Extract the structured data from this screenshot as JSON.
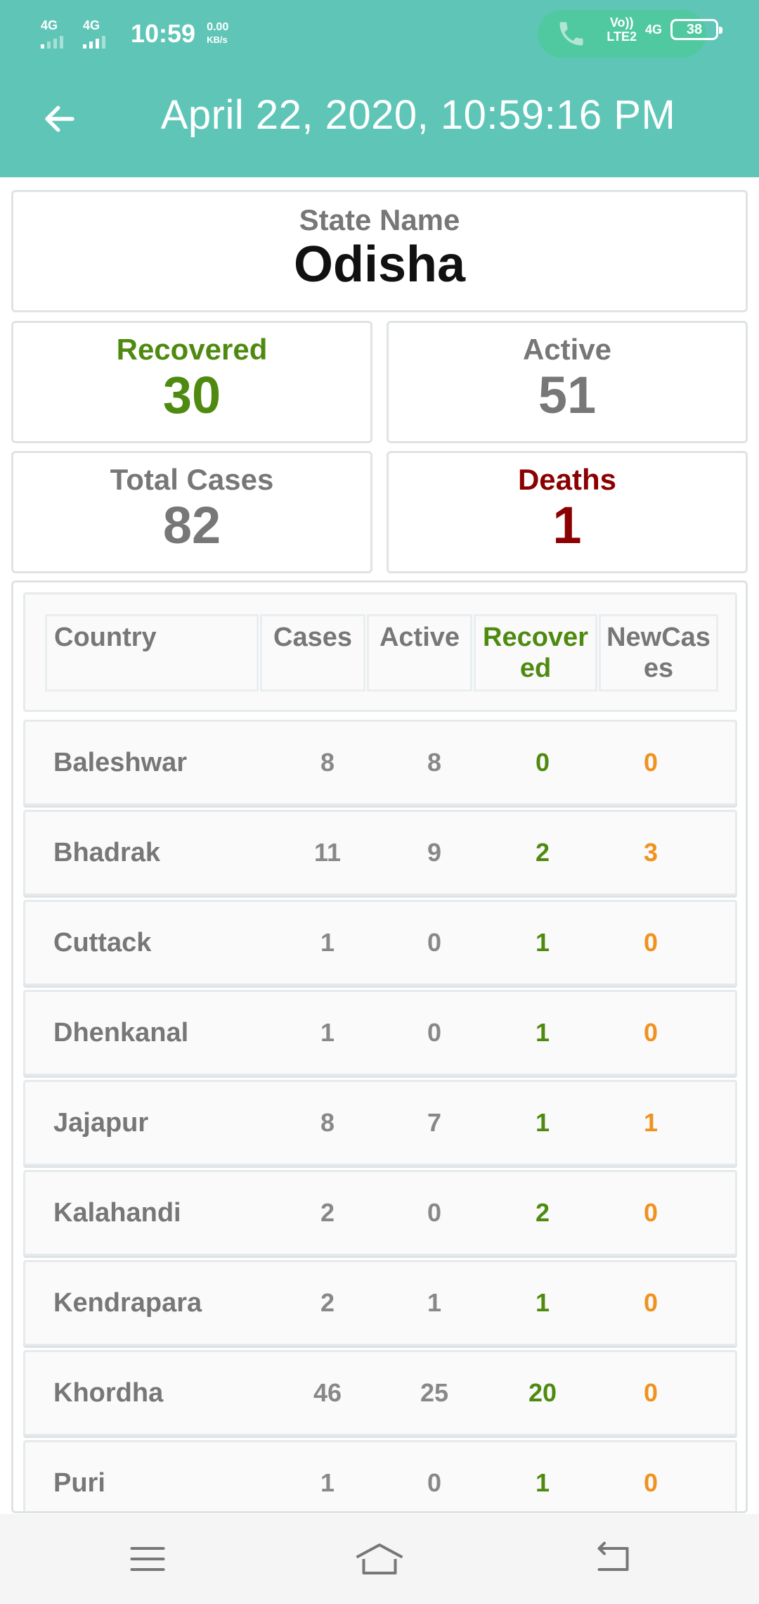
{
  "status_bar": {
    "sim1": "4G",
    "sim2": "4G",
    "time": "10:59",
    "speed_value": "0.00",
    "speed_unit": "KB/s",
    "volte_top": "Vo))",
    "volte_bottom": "LTE2",
    "network": "4G",
    "battery": "38"
  },
  "header": {
    "title": "April 22, 2020, 10:59:16 PM"
  },
  "state": {
    "label": "State Name",
    "value": "Odisha"
  },
  "stats": {
    "recovered": {
      "label": "Recovered",
      "value": "30"
    },
    "active": {
      "label": "Active",
      "value": "51"
    },
    "total": {
      "label": "Total Cases",
      "value": "82"
    },
    "deaths": {
      "label": "Deaths",
      "value": "1"
    }
  },
  "colors": {
    "teal": "#5fc6b7",
    "green": "#4f8a10",
    "red": "#8b0000",
    "orange": "#f0921e",
    "gray": "#777777"
  },
  "table": {
    "headers": {
      "country": "Country",
      "cases": "Cases",
      "active": "Active",
      "recovered": "Recovered",
      "new_cases": "NewCases"
    },
    "rows": [
      {
        "name": "Baleshwar",
        "cases": "8",
        "active": "8",
        "recovered": "0",
        "new_cases": "0"
      },
      {
        "name": "Bhadrak",
        "cases": "11",
        "active": "9",
        "recovered": "2",
        "new_cases": "3"
      },
      {
        "name": "Cuttack",
        "cases": "1",
        "active": "0",
        "recovered": "1",
        "new_cases": "0"
      },
      {
        "name": "Dhenkanal",
        "cases": "1",
        "active": "0",
        "recovered": "1",
        "new_cases": "0"
      },
      {
        "name": "Jajapur",
        "cases": "8",
        "active": "7",
        "recovered": "1",
        "new_cases": "1"
      },
      {
        "name": "Kalahandi",
        "cases": "2",
        "active": "0",
        "recovered": "2",
        "new_cases": "0"
      },
      {
        "name": "Kendrapara",
        "cases": "2",
        "active": "1",
        "recovered": "1",
        "new_cases": "0"
      },
      {
        "name": "Khordha",
        "cases": "46",
        "active": "25",
        "recovered": "20",
        "new_cases": "0"
      },
      {
        "name": "Puri",
        "cases": "1",
        "active": "0",
        "recovered": "1",
        "new_cases": "0"
      }
    ]
  },
  "nav": {
    "icons": [
      "menu-icon",
      "home-icon",
      "back-icon"
    ]
  }
}
